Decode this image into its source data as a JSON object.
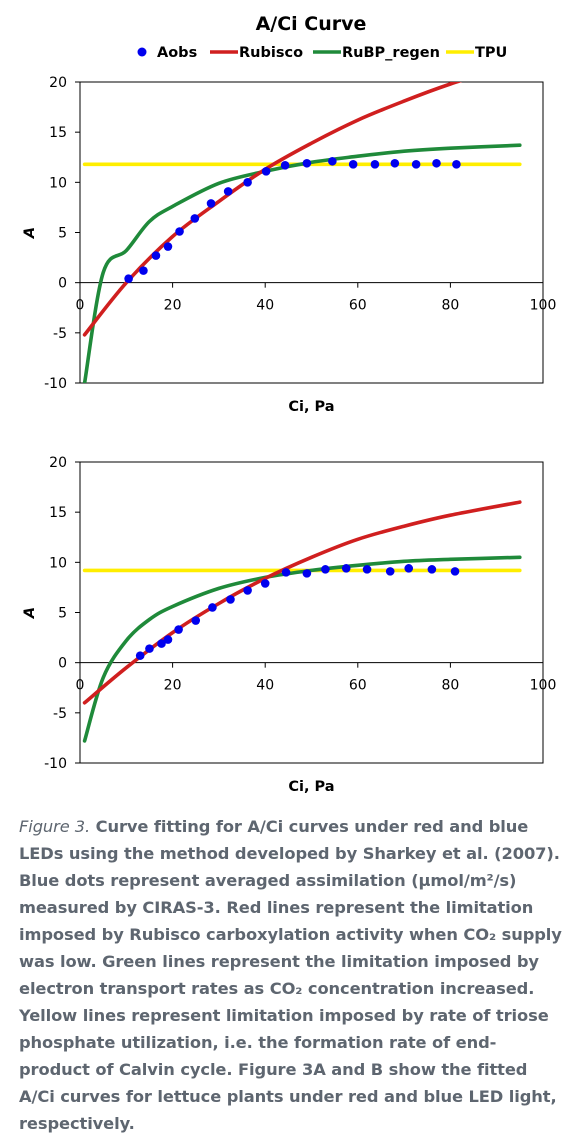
{
  "figure": {
    "title": "A/Ci Curve",
    "legend": [
      "Aobs",
      "Rubisco",
      "RuBP_regen",
      "TPU"
    ],
    "colors": {
      "Aobs": "#0000ee",
      "Rubisco": "#d01f1f",
      "RuBP_regen": "#1f8a3a",
      "TPU": "#ffee00",
      "axis": "#000000"
    }
  },
  "chart_data": [
    {
      "type": "scatter",
      "xlabel": "Ci, Pa",
      "ylabel": "A",
      "xlim": [
        0,
        100
      ],
      "ylim": [
        -10,
        20
      ],
      "xticks": [
        0,
        20,
        40,
        60,
        80,
        100
      ],
      "yticks": [
        -10,
        -5,
        0,
        5,
        10,
        15,
        20
      ],
      "grid": false,
      "legend_position": "top",
      "series": [
        {
          "name": "Aobs",
          "kind": "points",
          "x": [
            10.5,
            13.7,
            16.4,
            19.0,
            21.5,
            24.8,
            28.3,
            32.0,
            36.2,
            40.2,
            44.3,
            49.0,
            54.5,
            59.0,
            63.7,
            68.0,
            72.6,
            77.0,
            81.3
          ],
          "y": [
            0.4,
            1.2,
            2.7,
            3.6,
            5.1,
            6.4,
            7.9,
            9.1,
            10.0,
            11.1,
            11.7,
            11.9,
            12.1,
            11.8,
            11.8,
            11.9,
            11.8,
            11.9,
            11.8
          ]
        },
        {
          "name": "Rubisco",
          "kind": "line",
          "x": [
            1,
            10,
            20,
            30,
            40,
            50,
            60,
            70,
            80,
            95
          ],
          "y": [
            -5.2,
            0.0,
            4.6,
            8.1,
            11.3,
            13.9,
            16.2,
            18.1,
            19.8,
            22.0
          ]
        },
        {
          "name": "RuBP_regen",
          "kind": "line",
          "x": [
            1,
            5,
            10,
            15,
            20,
            30,
            40,
            50,
            60,
            70,
            80,
            95
          ],
          "y": [
            -10,
            1.0,
            3.2,
            6.1,
            7.6,
            9.9,
            11.1,
            12.0,
            12.6,
            13.1,
            13.4,
            13.7
          ]
        },
        {
          "name": "TPU",
          "kind": "line",
          "x": [
            1,
            95
          ],
          "y": [
            11.8,
            11.8
          ]
        }
      ]
    },
    {
      "type": "scatter",
      "xlabel": "Ci, Pa",
      "ylabel": "A",
      "xlim": [
        0,
        100
      ],
      "ylim": [
        -10,
        20
      ],
      "xticks": [
        0,
        20,
        40,
        60,
        80,
        100
      ],
      "yticks": [
        -10,
        -5,
        0,
        5,
        10,
        15,
        20
      ],
      "grid": false,
      "series": [
        {
          "name": "Aobs",
          "kind": "points",
          "x": [
            13.0,
            15.0,
            17.6,
            19.0,
            21.3,
            25.0,
            28.6,
            32.5,
            36.2,
            40.0,
            44.5,
            49.0,
            53.0,
            57.5,
            62.0,
            67.0,
            71.0,
            76.0,
            81.0
          ],
          "y": [
            0.7,
            1.4,
            1.9,
            2.3,
            3.3,
            4.2,
            5.5,
            6.3,
            7.2,
            7.9,
            9.0,
            8.9,
            9.3,
            9.4,
            9.3,
            9.1,
            9.4,
            9.3,
            9.1
          ]
        },
        {
          "name": "Rubisco",
          "kind": "line",
          "x": [
            1,
            10,
            20,
            30,
            40,
            50,
            60,
            70,
            80,
            95
          ],
          "y": [
            -4.0,
            -0.5,
            3.0,
            5.9,
            8.4,
            10.5,
            12.3,
            13.6,
            14.7,
            16.0
          ]
        },
        {
          "name": "RuBP_regen",
          "kind": "line",
          "x": [
            1,
            5,
            10,
            15,
            20,
            30,
            40,
            50,
            60,
            70,
            80,
            95
          ],
          "y": [
            -7.8,
            -1.5,
            2.2,
            4.3,
            5.6,
            7.4,
            8.5,
            9.2,
            9.7,
            10.1,
            10.3,
            10.5
          ]
        },
        {
          "name": "TPU",
          "kind": "line",
          "x": [
            1,
            95
          ],
          "y": [
            9.2,
            9.2
          ]
        }
      ]
    }
  ],
  "caption": {
    "figure_label": "Figure 3.",
    "text": "Curve fitting for A/Ci curves under red and blue LEDs using the method developed by Sharkey et al. (2007). Blue dots represent averaged assimilation (μmol/m²/s) measured by CIRAS-3. Red lines represent the limitation imposed by Rubisco carboxylation activity when CO₂ supply was low. Green lines represent the limitation imposed by electron transport rates as CO₂ concentration increased. Yellow lines represent limitation imposed by rate of triose phosphate utilization, i.e. the formation rate of end-product of Calvin cycle. Figure 3A and B show the fitted A/Ci curves for lettuce plants under red and blue LED light, respectively."
  }
}
